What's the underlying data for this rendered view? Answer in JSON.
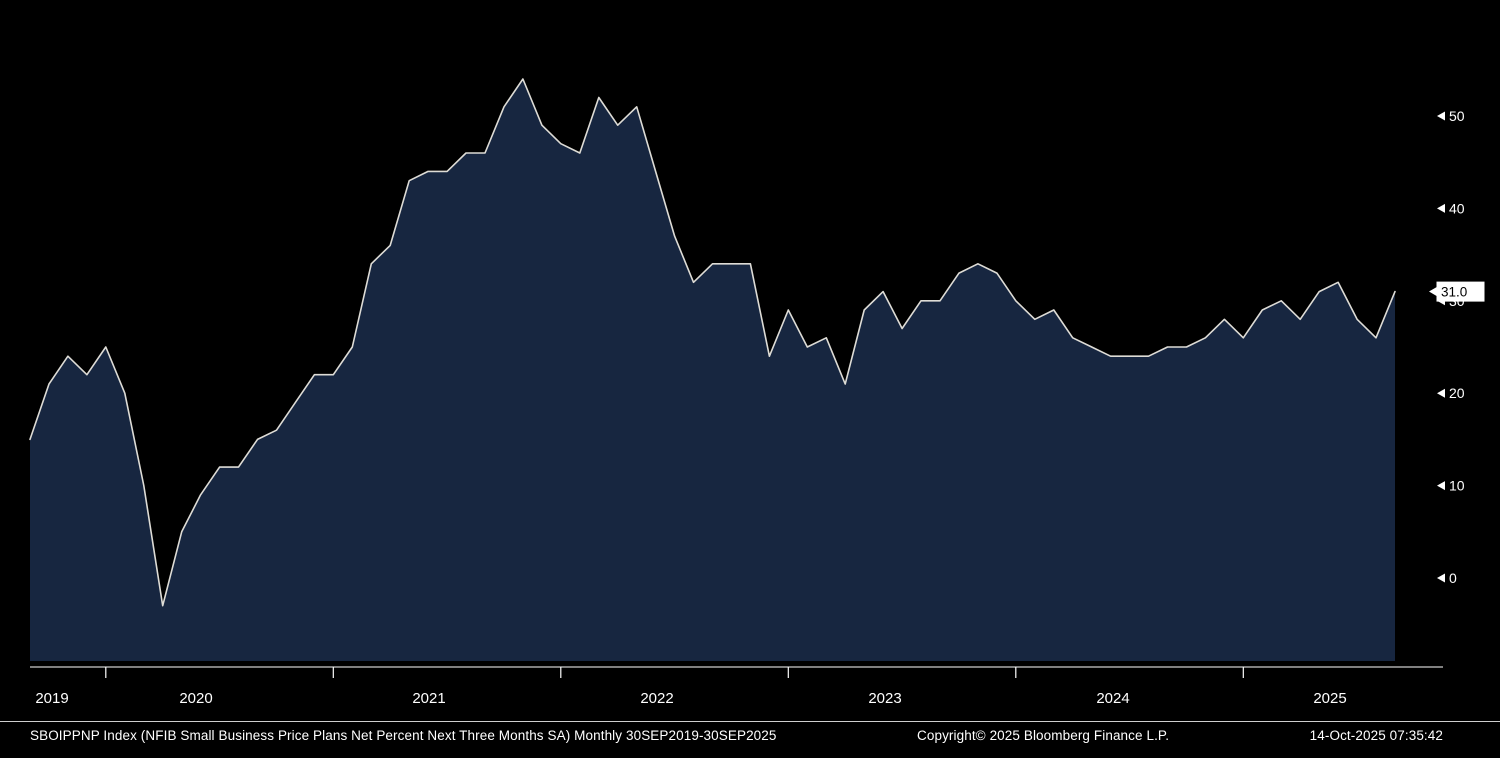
{
  "window": {
    "background": "#000000"
  },
  "chart_data": {
    "type": "area",
    "title": "",
    "security": "SBOIPPNP Index",
    "series_name": "NFIB Small Business Price Plans Net Percent Next Three Months SA",
    "frequency": "Monthly",
    "period": "30SEP2019-30SEP2025",
    "x_months": [
      "2019-09",
      "2019-10",
      "2019-11",
      "2019-12",
      "2020-01",
      "2020-02",
      "2020-03",
      "2020-04",
      "2020-05",
      "2020-06",
      "2020-07",
      "2020-08",
      "2020-09",
      "2020-10",
      "2020-11",
      "2020-12",
      "2021-01",
      "2021-02",
      "2021-03",
      "2021-04",
      "2021-05",
      "2021-06",
      "2021-07",
      "2021-08",
      "2021-09",
      "2021-10",
      "2021-11",
      "2021-12",
      "2022-01",
      "2022-02",
      "2022-03",
      "2022-04",
      "2022-05",
      "2022-06",
      "2022-07",
      "2022-08",
      "2022-09",
      "2022-10",
      "2022-11",
      "2022-12",
      "2023-01",
      "2023-02",
      "2023-03",
      "2023-04",
      "2023-05",
      "2023-06",
      "2023-07",
      "2023-08",
      "2023-09",
      "2023-10",
      "2023-11",
      "2023-12",
      "2024-01",
      "2024-02",
      "2024-03",
      "2024-04",
      "2024-05",
      "2024-06",
      "2024-07",
      "2024-08",
      "2024-09",
      "2024-10",
      "2024-11",
      "2024-12",
      "2025-01",
      "2025-02",
      "2025-03",
      "2025-04",
      "2025-05",
      "2025-06",
      "2025-07",
      "2025-08",
      "2025-09"
    ],
    "values": [
      15,
      21,
      24,
      22,
      25,
      20,
      10,
      -3,
      5,
      9,
      12,
      12,
      15,
      16,
      19,
      22,
      22,
      25,
      34,
      36,
      43,
      44,
      44,
      46,
      46,
      51,
      54,
      49,
      47,
      46,
      52,
      49,
      51,
      44,
      37,
      32,
      34,
      34,
      34,
      24,
      29,
      25,
      26,
      21,
      29,
      31,
      27,
      30,
      30,
      33,
      34,
      33,
      30,
      28,
      29,
      26,
      25,
      24,
      24,
      24,
      25,
      25,
      26,
      28,
      26,
      29,
      30,
      28,
      31,
      32,
      28,
      26,
      31
    ],
    "x_tick_labels": [
      "2019",
      "2020",
      "2021",
      "2022",
      "2023",
      "2024",
      "2025"
    ],
    "y_ticks": [
      0,
      10,
      20,
      30,
      40,
      50
    ],
    "ylim": [
      -9,
      59
    ],
    "grid": false,
    "legend_position": "none",
    "last_value": 31.0,
    "last_value_label": "31.0",
    "colors": {
      "background": "#000000",
      "area_fill": "#172640",
      "line": "#dedcd6",
      "axis": "#ffffff",
      "text": "#ffffff",
      "last_value_box_bg": "#ffffff",
      "last_value_text": "#000000"
    }
  },
  "footer": {
    "description": "SBOIPPNP Index (NFIB Small Business Price Plans Net Percent Next Three Months SA) Monthly 30SEP2019-30SEP2025",
    "copyright": "Copyright© 2025 Bloomberg Finance L.P.",
    "timestamp": "14-Oct-2025 07:35:42"
  }
}
